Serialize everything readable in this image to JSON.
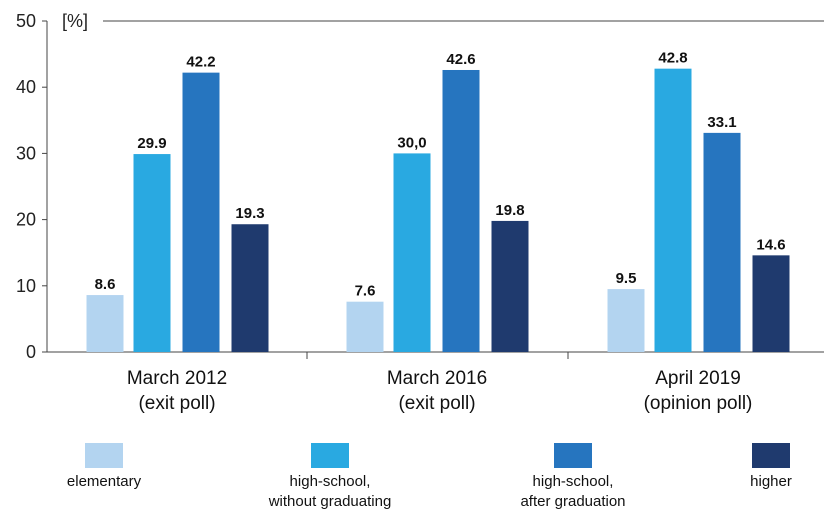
{
  "chart_data": {
    "type": "bar",
    "unit_label": "[%]",
    "y_ticks": [
      0,
      10,
      20,
      30,
      40,
      50
    ],
    "ylim": [
      0,
      50
    ],
    "grid": false,
    "legend_position": "bottom",
    "categories": [
      [
        "March 2012",
        "(exit poll)"
      ],
      [
        "March 2016",
        "(exit poll)"
      ],
      [
        "April 2019",
        "(opinion poll)"
      ]
    ],
    "series": [
      {
        "name": "elementary",
        "name_lines": [
          "elementary"
        ],
        "color": "#b3d4f0",
        "values": [
          8.6,
          7.6,
          9.5
        ],
        "labels": [
          "8.6",
          "7.6",
          "9.5"
        ]
      },
      {
        "name": "high-school, without graduating",
        "name_lines": [
          "high-school,",
          "without graduating"
        ],
        "color": "#29a9e1",
        "values": [
          29.9,
          30.0,
          42.8
        ],
        "labels": [
          "29.9",
          "30,0",
          "42.8"
        ]
      },
      {
        "name": "high-school, after graduation",
        "name_lines": [
          "high-school,",
          "after graduation"
        ],
        "color": "#2675bf",
        "values": [
          42.2,
          42.6,
          33.1
        ],
        "labels": [
          "42.2",
          "42.6",
          "33.1"
        ]
      },
      {
        "name": "higher",
        "name_lines": [
          "higher"
        ],
        "color": "#1f3a6e",
        "values": [
          19.3,
          19.8,
          14.6
        ],
        "labels": [
          "19.3",
          "19.8",
          "14.6"
        ]
      }
    ]
  }
}
